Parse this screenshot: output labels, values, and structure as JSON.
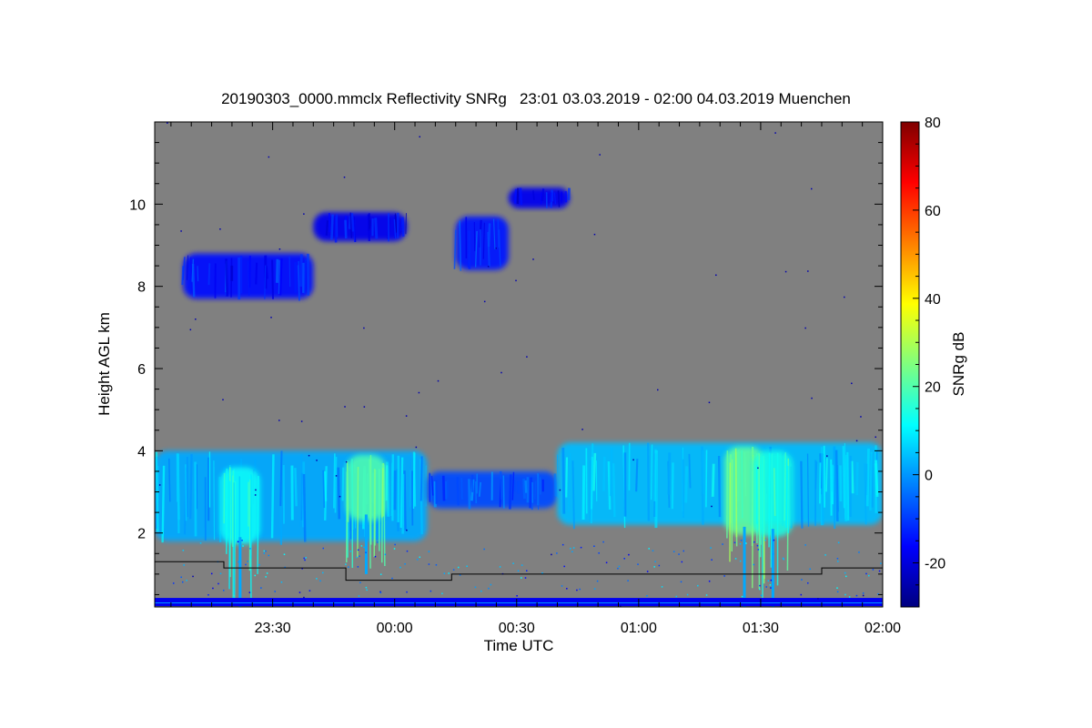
{
  "chart_data": {
    "type": "heatmap",
    "title": "20190303_0000.mmclx Reflectivity SNRg   23:01 03.03.2019 - 02:00 04.03.2019 Muenchen",
    "xlabel": "Time UTC",
    "ylabel": "Height AGL km",
    "colorbar_label": "SNRg dB",
    "x_range_minutes_from_midnight": [
      -59,
      120
    ],
    "x_ticks": [
      {
        "value": -30,
        "label": "23:30"
      },
      {
        "value": 0,
        "label": "00:00"
      },
      {
        "value": 30,
        "label": "00:30"
      },
      {
        "value": 60,
        "label": "01:00"
      },
      {
        "value": 90,
        "label": "01:30"
      },
      {
        "value": 120,
        "label": "02:00"
      }
    ],
    "y_range_km": [
      0.2,
      12
    ],
    "y_ticks": [
      {
        "value": 2,
        "label": "2"
      },
      {
        "value": 4,
        "label": "4"
      },
      {
        "value": 6,
        "label": "6"
      },
      {
        "value": 8,
        "label": "8"
      },
      {
        "value": 10,
        "label": "10"
      }
    ],
    "colorbar_range_db": [
      -30,
      80
    ],
    "colorbar_ticks": [
      {
        "value": -20,
        "label": "-20"
      },
      {
        "value": 0,
        "label": "0"
      },
      {
        "value": 20,
        "label": "20"
      },
      {
        "value": 40,
        "label": "40"
      },
      {
        "value": 60,
        "label": "60"
      },
      {
        "value": 80,
        "label": "80"
      }
    ],
    "colormap": [
      "#00007f",
      "#0000ff",
      "#007fff",
      "#00ffff",
      "#7fff7f",
      "#ffff00",
      "#ff7f00",
      "#ff0000",
      "#7f0000"
    ],
    "background_color": "#808080",
    "echo_regions": [
      {
        "name": "upper-cloud-west",
        "t_start": -52,
        "t_end": -20,
        "h_bottom": 7.7,
        "h_top": 8.8,
        "snr": -15
      },
      {
        "name": "upper-cloud-fragments",
        "t_start": -20,
        "t_end": 3,
        "h_bottom": 9.1,
        "h_top": 9.8,
        "snr": -18
      },
      {
        "name": "upper-cloud-east",
        "t_start": 15,
        "t_end": 28,
        "h_bottom": 8.4,
        "h_top": 9.7,
        "snr": -14
      },
      {
        "name": "upper-cloud-east-top",
        "t_start": 28,
        "t_end": 43,
        "h_bottom": 9.9,
        "h_top": 10.4,
        "snr": -18
      },
      {
        "name": "lower-cloud-west",
        "t_start": -59,
        "t_end": 8,
        "h_bottom": 1.8,
        "h_top": 4.0,
        "snr": 2
      },
      {
        "name": "lower-cloud-middle",
        "t_start": 8,
        "t_end": 40,
        "h_bottom": 2.6,
        "h_top": 3.5,
        "snr": -8
      },
      {
        "name": "lower-cloud-east",
        "t_start": 40,
        "t_end": 120,
        "h_bottom": 2.2,
        "h_top": 4.2,
        "snr": 4
      }
    ],
    "precipitation_cores": [
      {
        "t": -38,
        "h_bottom": 0.2,
        "h_top": 3.6,
        "snr": 12
      },
      {
        "t": -7,
        "h_bottom": 1.0,
        "h_top": 3.9,
        "snr": 20
      },
      {
        "t": 86,
        "h_bottom": 0.2,
        "h_top": 4.1,
        "snr": 22
      },
      {
        "t": 93,
        "h_bottom": 0.2,
        "h_top": 4.0,
        "snr": 14
      }
    ],
    "black_step_line": [
      {
        "t": -59,
        "h": 1.3
      },
      {
        "t": -42,
        "h": 1.3
      },
      {
        "t": -42,
        "h": 1.15
      },
      {
        "t": -12,
        "h": 1.15
      },
      {
        "t": -12,
        "h": 0.85
      },
      {
        "t": 14,
        "h": 0.85
      },
      {
        "t": 14,
        "h": 1.0
      },
      {
        "t": 105,
        "h": 1.0
      },
      {
        "t": 105,
        "h": 1.15
      },
      {
        "t": 120,
        "h": 1.15
      }
    ],
    "surface_band": {
      "h_bottom": 0.22,
      "h_top": 0.42,
      "snr": -18
    }
  }
}
